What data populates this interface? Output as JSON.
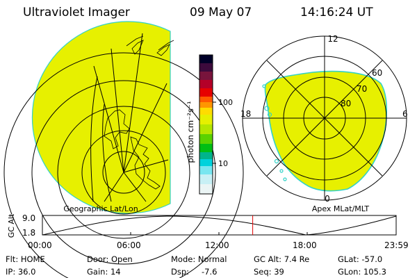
{
  "header": {
    "instrument": "Ultraviolet Imager",
    "date": "09 May 07",
    "time": "14:16:24 UT"
  },
  "colors": {
    "emission_fill": "#e7f000",
    "emission_edge": "#32d2c8",
    "current_time_marker": "#e00000"
  },
  "geographic_panel": {
    "label": "Geographic Lat/Lon"
  },
  "colorbar": {
    "unit_label": "photon cm⁻²s⁻¹",
    "tick_100": "100",
    "tick_10": "10",
    "scale": "log",
    "colors_top_to_bottom": [
      "#000028",
      "#3c0a3c",
      "#78143c",
      "#b40028",
      "#e60000",
      "#ff5a00",
      "#ff9600",
      "#ffdc00",
      "#e6f000",
      "#b4e600",
      "#5ad200",
      "#00be14",
      "#00b48c",
      "#00d2dc",
      "#78e6f0",
      "#c8f0f5",
      "#ebf5f5"
    ]
  },
  "polar_panel": {
    "label": "Apex MLat/MLT",
    "mlt_labels": {
      "top": "12",
      "right": "6",
      "bottom": "0",
      "left": "18"
    },
    "mlat_labels": [
      "60",
      "70",
      "80"
    ]
  },
  "altitude_plot": {
    "axis_label": "GC Alt",
    "y_max": "9.0",
    "y_min": "1.8",
    "x_ticks": [
      "00:00",
      "06:00",
      "12:00",
      "18:00",
      "23:59"
    ],
    "current_time_hours": 14.27
  },
  "status": {
    "flt": "Flt: HOME",
    "ip": "IP: 36.0",
    "door": "Door: Open",
    "gain": "Gain: 14",
    "mode": "Mode: Normal",
    "dsp_label": "Dsp:",
    "dsp_value": "-7.6",
    "gc_alt": "GC Alt: 7.4 Re",
    "seq": "Seq: 39",
    "glat": "GLat: -57.0",
    "glon": "GLon: 105.3"
  }
}
